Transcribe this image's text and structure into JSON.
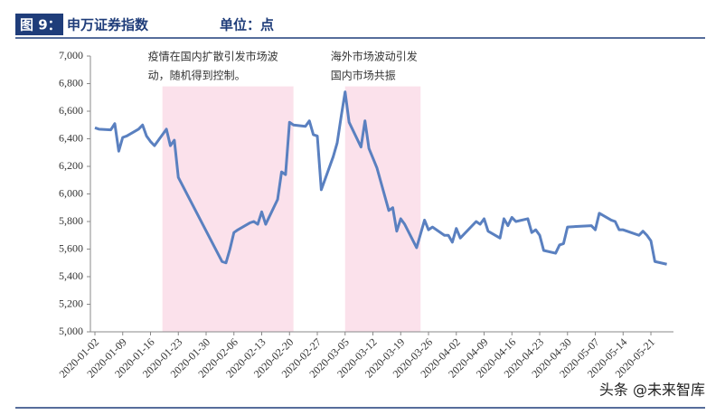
{
  "header": {
    "figure": "图 9：",
    "title": "申万证券指数",
    "unit": "单位：点"
  },
  "watermark": "头条 @未来智库",
  "chart_data": {
    "type": "line",
    "x": [
      "2020-01-02",
      "2020-01-03",
      "2020-01-06",
      "2020-01-07",
      "2020-01-08",
      "2020-01-09",
      "2020-01-10",
      "2020-01-13",
      "2020-01-14",
      "2020-01-15",
      "2020-01-16",
      "2020-01-17",
      "2020-01-20",
      "2020-01-21",
      "2020-01-22",
      "2020-01-23",
      "2020-02-03",
      "2020-02-04",
      "2020-02-05",
      "2020-02-06",
      "2020-02-07",
      "2020-02-10",
      "2020-02-11",
      "2020-02-12",
      "2020-02-13",
      "2020-02-14",
      "2020-02-17",
      "2020-02-18",
      "2020-02-19",
      "2020-02-20",
      "2020-02-21",
      "2020-02-24",
      "2020-02-25",
      "2020-02-26",
      "2020-02-27",
      "2020-02-28",
      "2020-03-02",
      "2020-03-03",
      "2020-03-04",
      "2020-03-05",
      "2020-03-06",
      "2020-03-09",
      "2020-03-10",
      "2020-03-11",
      "2020-03-12",
      "2020-03-13",
      "2020-03-16",
      "2020-03-17",
      "2020-03-18",
      "2020-03-19",
      "2020-03-20",
      "2020-03-23",
      "2020-03-24",
      "2020-03-25",
      "2020-03-26",
      "2020-03-27",
      "2020-03-30",
      "2020-03-31",
      "2020-04-01",
      "2020-04-02",
      "2020-04-03",
      "2020-04-07",
      "2020-04-08",
      "2020-04-09",
      "2020-04-10",
      "2020-04-13",
      "2020-04-14",
      "2020-04-15",
      "2020-04-16",
      "2020-04-17",
      "2020-04-20",
      "2020-04-21",
      "2020-04-22",
      "2020-04-23",
      "2020-04-24",
      "2020-04-27",
      "2020-04-28",
      "2020-04-29",
      "2020-04-30",
      "2020-05-06",
      "2020-05-07",
      "2020-05-08",
      "2020-05-11",
      "2020-05-12",
      "2020-05-13",
      "2020-05-14",
      "2020-05-15",
      "2020-05-18",
      "2020-05-19",
      "2020-05-20",
      "2020-05-21",
      "2020-05-22",
      "2020-05-25"
    ],
    "values": [
      6480,
      6470,
      6465,
      6510,
      6310,
      6410,
      6420,
      6470,
      6500,
      6420,
      6380,
      6350,
      6470,
      6350,
      6390,
      6120,
      5510,
      5500,
      5600,
      5720,
      5740,
      5790,
      5800,
      5780,
      5870,
      5780,
      5960,
      6160,
      6140,
      6520,
      6500,
      6490,
      6530,
      6430,
      6420,
      6030,
      6270,
      6370,
      6560,
      6740,
      6520,
      6340,
      6530,
      6330,
      6260,
      6190,
      5880,
      5900,
      5730,
      5820,
      5780,
      5610,
      5710,
      5810,
      5740,
      5760,
      5700,
      5700,
      5650,
      5750,
      5680,
      5800,
      5780,
      5820,
      5730,
      5680,
      5820,
      5770,
      5830,
      5800,
      5820,
      5720,
      5740,
      5700,
      5590,
      5570,
      5630,
      5640,
      5760,
      5770,
      5740,
      5860,
      5810,
      5800,
      5740,
      5740,
      5730,
      5700,
      5730,
      5700,
      5660,
      5510,
      5490
    ],
    "color": "#5a80c0",
    "xlim": [
      "2020-01-02",
      "2020-05-26"
    ],
    "xticks": [
      "2020-01-02",
      "2020-01-09",
      "2020-01-16",
      "2020-01-23",
      "2020-01-30",
      "2020-02-06",
      "2020-02-13",
      "2020-02-20",
      "2020-02-27",
      "2020-03-05",
      "2020-03-12",
      "2020-03-19",
      "2020-03-26",
      "2020-04-02",
      "2020-04-09",
      "2020-04-16",
      "2020-04-23",
      "2020-04-30",
      "2020-05-07",
      "2020-05-14",
      "2020-05-21"
    ],
    "ylim": [
      5000,
      7000
    ],
    "yticks": [
      {
        "value": 5000,
        "label": "5,000"
      },
      {
        "value": 5200,
        "label": "5,200"
      },
      {
        "value": 5400,
        "label": "5,400"
      },
      {
        "value": 5600,
        "label": "5,600"
      },
      {
        "value": 5800,
        "label": "5,800"
      },
      {
        "value": 6000,
        "label": "6,000"
      },
      {
        "value": 6200,
        "label": "6,200"
      },
      {
        "value": 6400,
        "label": "6,400"
      },
      {
        "value": 6600,
        "label": "6,600"
      },
      {
        "value": 6800,
        "label": "6,800"
      },
      {
        "value": 7000,
        "label": "7,000"
      }
    ],
    "highlights": [
      {
        "start": "2020-01-19",
        "end": "2020-02-21",
        "color": "#fbe1eb",
        "label": [
          "疫情在国内扩散引发市场波",
          "动，随机得到控制。"
        ]
      },
      {
        "start": "2020-03-05",
        "end": "2020-03-24",
        "color": "#fbe1eb",
        "label": [
          "海外市场波动引发",
          "国内市场共振"
        ]
      }
    ]
  }
}
